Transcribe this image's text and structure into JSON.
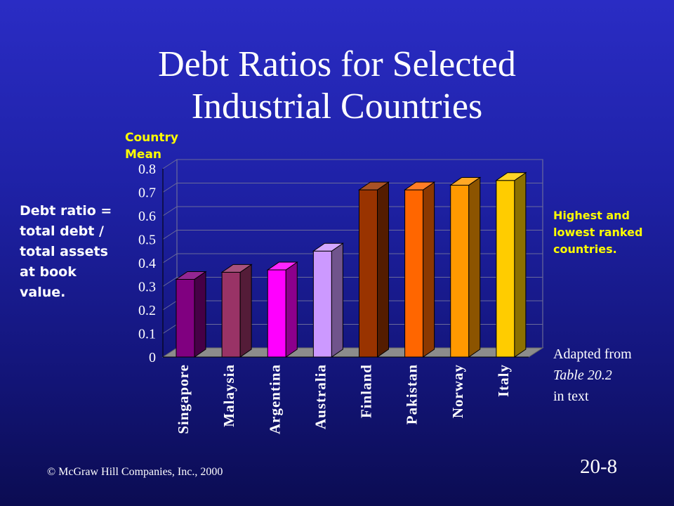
{
  "slide": {
    "title_line1": "Debt Ratios for Selected",
    "title_line2": "Industrial Countries",
    "left_note": [
      "Debt ratio =",
      "total debt /",
      "total assets",
      "at book",
      "value."
    ],
    "right_note": [
      "Highest and",
      "lowest ranked",
      "countries."
    ],
    "source_line1": "Adapted from",
    "source_line2": "Table 20.2",
    "source_line3": "in text",
    "footer": "© McGraw Hill Companies, Inc., 2000",
    "slide_number": "20-8"
  },
  "chart_data": {
    "type": "bar",
    "title": "Debt Ratios for Selected Industrial Countries",
    "ylabel_line1": "Country",
    "ylabel_line2": "Mean",
    "xlabel": "",
    "ylim": [
      0,
      0.8
    ],
    "yticks": [
      "0",
      "0.1",
      "0.2",
      "0.3",
      "0.4",
      "0.5",
      "0.6",
      "0.7",
      "0.8"
    ],
    "grid": true,
    "categories": [
      "Singapore",
      "Malaysia",
      "Argentina",
      "Australia",
      "Finland",
      "Pakistan",
      "Norway",
      "Italy"
    ],
    "values": [
      0.33,
      0.36,
      0.37,
      0.45,
      0.71,
      0.71,
      0.73,
      0.75
    ],
    "colors": [
      "#800080",
      "#993366",
      "#ff00ff",
      "#cc99ff",
      "#993300",
      "#ff6600",
      "#ff9900",
      "#ffcc00"
    ]
  }
}
